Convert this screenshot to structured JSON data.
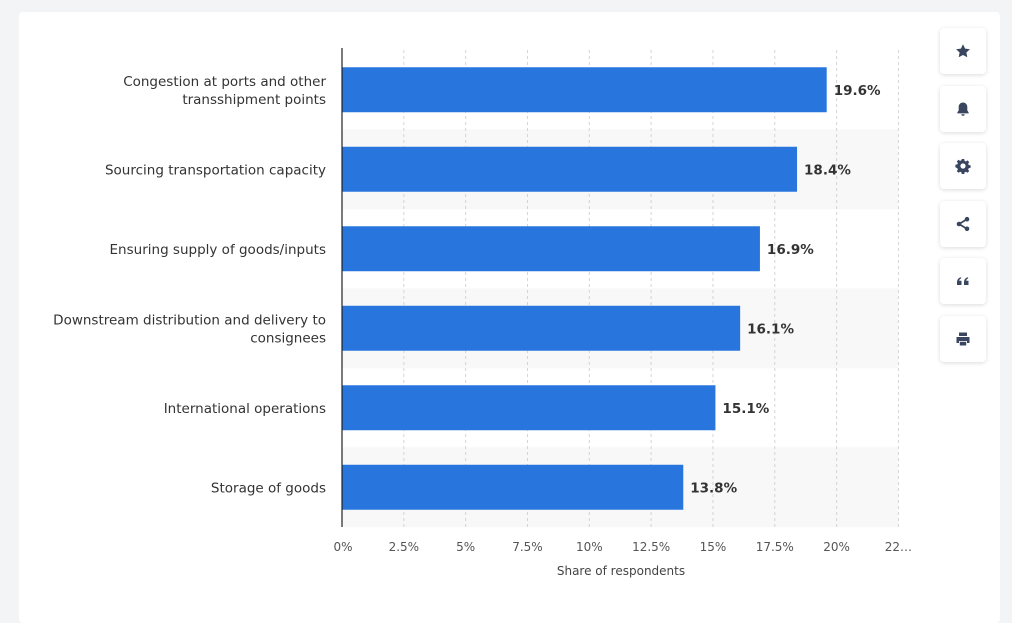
{
  "chart_data": {
    "type": "bar",
    "orientation": "horizontal",
    "categories": [
      [
        "Congestion at ports and other",
        "transshipment points"
      ],
      [
        "Sourcing transportation capacity"
      ],
      [
        "Ensuring supply of goods/inputs"
      ],
      [
        "Downstream distribution and delivery to",
        "consignees"
      ],
      [
        "International operations"
      ],
      [
        "Storage of goods"
      ]
    ],
    "values": [
      19.6,
      18.4,
      16.9,
      16.1,
      15.1,
      13.8
    ],
    "value_labels": [
      "19.6%",
      "18.4%",
      "16.9%",
      "16.1%",
      "15.1%",
      "13.8%"
    ],
    "xlabel": "Share of respondents",
    "xlim": [
      0,
      22.5
    ],
    "x_ticks": [
      {
        "value": 0,
        "label": "0%"
      },
      {
        "value": 2.5,
        "label": "2.5%"
      },
      {
        "value": 5,
        "label": "5%"
      },
      {
        "value": 7.5,
        "label": "7.5%"
      },
      {
        "value": 10,
        "label": "10%"
      },
      {
        "value": 12.5,
        "label": "12.5%"
      },
      {
        "value": 15,
        "label": "15%"
      },
      {
        "value": 17.5,
        "label": "17.5%"
      },
      {
        "value": 20,
        "label": "20%"
      },
      {
        "value": 22.5,
        "label": "22…"
      }
    ],
    "bar_color": "#2876dd",
    "grid": true
  },
  "toolbar": {
    "buttons": [
      {
        "name": "favorite-button",
        "icon": "star-icon"
      },
      {
        "name": "notification-button",
        "icon": "bell-icon"
      },
      {
        "name": "settings-button",
        "icon": "gear-icon"
      },
      {
        "name": "share-button",
        "icon": "share-icon"
      },
      {
        "name": "cite-button",
        "icon": "quote-icon"
      },
      {
        "name": "print-button",
        "icon": "printer-icon"
      }
    ]
  }
}
